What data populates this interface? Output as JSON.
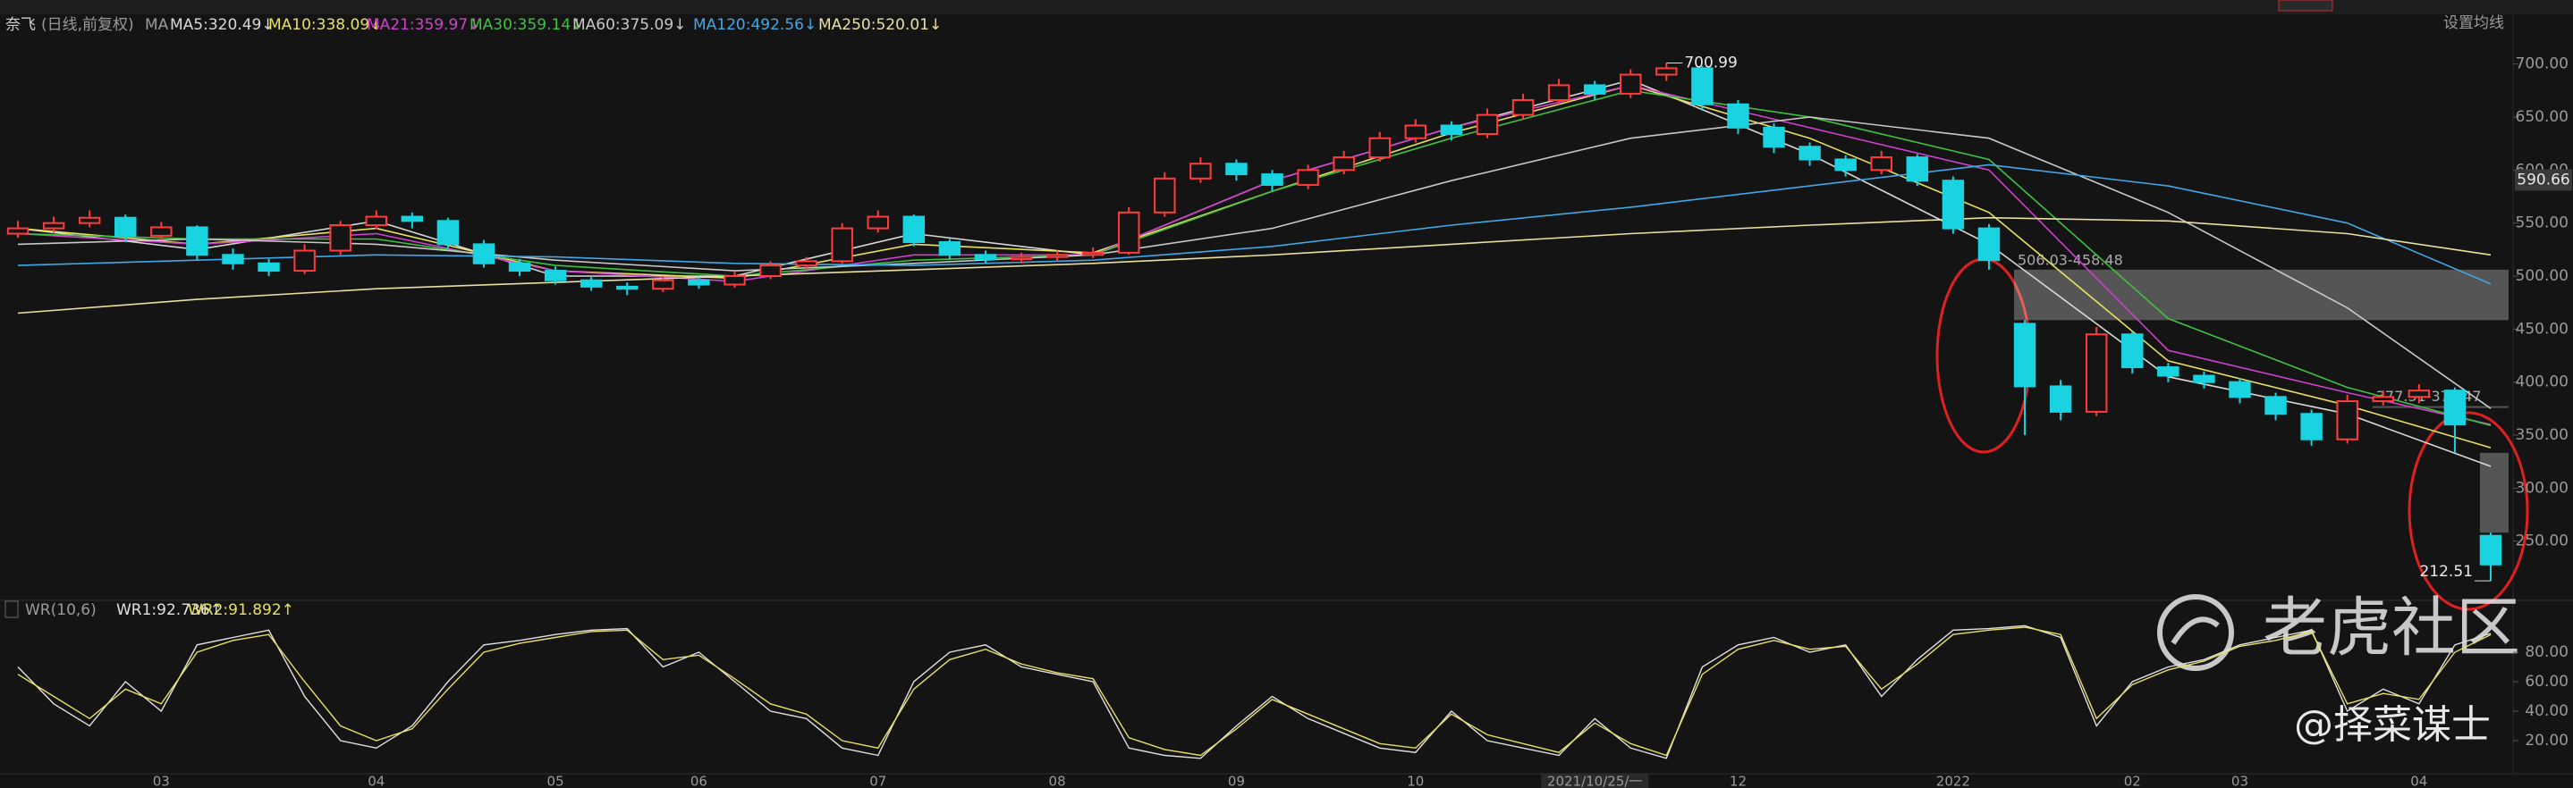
{
  "header": {
    "symbol": "奈飞",
    "period": "(日线,前复权)",
    "ma_label": "MA",
    "settings": "设置均线",
    "indicator": "WR(10,6)"
  },
  "watermark": {
    "brand": "老虎社区",
    "author": "@择菜谋士"
  },
  "chart_data": [
    {
      "type": "candlestick",
      "up_color": "#ff3b3b",
      "down_color": "#19d3e0",
      "categories": [
        null,
        null,
        null,
        null,
        "03",
        null,
        null,
        null,
        null,
        null,
        "04",
        null,
        null,
        null,
        null,
        "05",
        null,
        null,
        null,
        "06",
        null,
        null,
        null,
        null,
        "07",
        null,
        null,
        null,
        null,
        "08",
        null,
        null,
        null,
        null,
        "09",
        null,
        null,
        null,
        null,
        "10",
        null,
        null,
        null,
        null,
        "2021/10/25/一",
        null,
        null,
        null,
        "12",
        null,
        null,
        null,
        null,
        null,
        "2022",
        null,
        null,
        null,
        null,
        "02",
        null,
        null,
        "03",
        null,
        null,
        null,
        null,
        "04",
        null,
        null
      ],
      "candles": [
        [
          540,
          552,
          536,
          545
        ],
        [
          545,
          556,
          541,
          550
        ],
        [
          550,
          562,
          546,
          555
        ],
        [
          555,
          558,
          532,
          538
        ],
        [
          538,
          551,
          534,
          546
        ],
        [
          546,
          548,
          515,
          520
        ],
        [
          520,
          526,
          506,
          512
        ],
        [
          512,
          516,
          500,
          505
        ],
        [
          505,
          530,
          502,
          524
        ],
        [
          524,
          552,
          520,
          548
        ],
        [
          548,
          562,
          544,
          556
        ],
        [
          556,
          560,
          545,
          552
        ],
        [
          552,
          555,
          526,
          530
        ],
        [
          530,
          534,
          508,
          512
        ],
        [
          512,
          516,
          500,
          505
        ],
        [
          505,
          509,
          492,
          496
        ],
        [
          496,
          500,
          486,
          490
        ],
        [
          490,
          494,
          482,
          488
        ],
        [
          488,
          500,
          485,
          496
        ],
        [
          496,
          499,
          488,
          492
        ],
        [
          492,
          504,
          489,
          500
        ],
        [
          500,
          514,
          497,
          510
        ],
        [
          510,
          518,
          506,
          514
        ],
        [
          514,
          550,
          512,
          545
        ],
        [
          545,
          562,
          541,
          556
        ],
        [
          556,
          558,
          528,
          532
        ],
        [
          532,
          535,
          516,
          520
        ],
        [
          520,
          524,
          512,
          516
        ],
        [
          516,
          522,
          512,
          518
        ],
        [
          518,
          524,
          514,
          520
        ],
        [
          520,
          527,
          517,
          522
        ],
        [
          522,
          565,
          520,
          560
        ],
        [
          560,
          598,
          556,
          592
        ],
        [
          592,
          612,
          588,
          606
        ],
        [
          606,
          610,
          590,
          596
        ],
        [
          596,
          600,
          580,
          586
        ],
        [
          586,
          605,
          582,
          600
        ],
        [
          600,
          618,
          596,
          612
        ],
        [
          612,
          636,
          608,
          630
        ],
        [
          630,
          648,
          626,
          642
        ],
        [
          642,
          646,
          628,
          634
        ],
        [
          634,
          658,
          630,
          652
        ],
        [
          652,
          672,
          648,
          666
        ],
        [
          666,
          686,
          662,
          680
        ],
        [
          680,
          684,
          666,
          672
        ],
        [
          672,
          695,
          668,
          690
        ],
        [
          690,
          700.99,
          684,
          696
        ],
        [
          696,
          698,
          656,
          662
        ],
        [
          662,
          666,
          634,
          640
        ],
        [
          640,
          644,
          616,
          622
        ],
        [
          622,
          626,
          604,
          610
        ],
        [
          610,
          614,
          594,
          600
        ],
        [
          600,
          618,
          596,
          612
        ],
        [
          612,
          615,
          585,
          590
        ],
        [
          590,
          594,
          540,
          545
        ],
        [
          545,
          549,
          506.03,
          515
        ],
        [
          455,
          458.48,
          350,
          396
        ],
        [
          396,
          402,
          364,
          372
        ],
        [
          372,
          452,
          368,
          445
        ],
        [
          445,
          448,
          408,
          414
        ],
        [
          414,
          418,
          400,
          406
        ],
        [
          406,
          410,
          394,
          400
        ],
        [
          400,
          404,
          380,
          386
        ],
        [
          386,
          390,
          364,
          370
        ],
        [
          370,
          374,
          340,
          346
        ],
        [
          346,
          388,
          342,
          382
        ],
        [
          382,
          392,
          378,
          386
        ],
        [
          386,
          398,
          380,
          392
        ],
        [
          392,
          395,
          333.22,
          360
        ],
        [
          255,
          258,
          212.51,
          228
        ]
      ],
      "series": [
        {
          "name": "MA5:320.49↓",
          "color": "#d8d8d8",
          "x": [
            0,
            5,
            10,
            15,
            20,
            25,
            30,
            35,
            40,
            45,
            50,
            55,
            60,
            65,
            69
          ],
          "values": [
            545,
            525,
            552,
            500,
            500,
            540,
            520,
            590,
            640,
            685,
            615,
            530,
            405,
            370,
            320.49
          ]
        },
        {
          "name": "MA10:338.09↓",
          "color": "#e8e060",
          "x": [
            0,
            5,
            10,
            15,
            20,
            25,
            30,
            35,
            40,
            45,
            50,
            55,
            60,
            65,
            69
          ],
          "values": [
            545,
            530,
            545,
            505,
            498,
            530,
            522,
            580,
            635,
            680,
            630,
            560,
            420,
            378,
            338.09
          ]
        },
        {
          "name": "MA21:359.97↓",
          "color": "#d040d0",
          "x": [
            0,
            5,
            10,
            15,
            20,
            25,
            30,
            35,
            40,
            45,
            50,
            55,
            60,
            65,
            69
          ],
          "values": [
            540,
            530,
            540,
            505,
            495,
            520,
            520,
            590,
            640,
            680,
            640,
            600,
            430,
            390,
            359.97
          ]
        },
        {
          "name": "MA30:359.14↓",
          "color": "#40c040",
          "x": [
            0,
            5,
            10,
            15,
            20,
            25,
            30,
            35,
            40,
            45,
            50,
            55,
            60,
            65,
            69
          ],
          "values": [
            540,
            535,
            535,
            510,
            500,
            515,
            520,
            580,
            630,
            675,
            650,
            610,
            460,
            395,
            359.14
          ]
        },
        {
          "name": "MA60:375.09↓",
          "color": "#c8c8c8",
          "x": [
            0,
            5,
            10,
            15,
            20,
            25,
            30,
            35,
            40,
            45,
            50,
            55,
            60,
            65,
            69
          ],
          "values": [
            530,
            535,
            530,
            515,
            505,
            512,
            520,
            545,
            590,
            630,
            650,
            630,
            560,
            470,
            375.09
          ]
        },
        {
          "name": "MA120:492.56↓",
          "color": "#40a8e8",
          "x": [
            0,
            5,
            10,
            15,
            20,
            25,
            30,
            35,
            40,
            45,
            50,
            55,
            60,
            65,
            69
          ],
          "values": [
            510,
            515,
            520,
            518,
            512,
            510,
            515,
            528,
            548,
            565,
            585,
            605,
            585,
            550,
            492.56
          ]
        },
        {
          "name": "MA250:520.01↓",
          "color": "#e8e0a0",
          "x": [
            0,
            5,
            10,
            15,
            20,
            25,
            30,
            35,
            40,
            45,
            50,
            55,
            60,
            65,
            69
          ],
          "values": [
            465,
            478,
            488,
            494,
            500,
            506,
            512,
            520,
            530,
            540,
            548,
            555,
            552,
            540,
            520.01
          ]
        }
      ],
      "annotations": [
        {
          "index": 46,
          "value": 700.99,
          "label": "700.99"
        },
        {
          "index": 69,
          "value": 212.51,
          "label": "212.51"
        }
      ],
      "gaps": [
        {
          "from": 56,
          "low": 458.48,
          "high": 506.03,
          "label": "506.03-458.48"
        },
        {
          "from": 66,
          "low": 376.47,
          "high": 377.31,
          "label": "377.31-376.47"
        },
        {
          "from": 69,
          "low": 258,
          "high": 333.22
        }
      ],
      "price_marker": 590.66,
      "ylim": [
        200,
        725
      ],
      "yticks": [
        {
          "value": 250,
          "label": "250.00"
        },
        {
          "value": 300,
          "label": "300.00"
        },
        {
          "value": 350,
          "label": "350.00"
        },
        {
          "value": 400,
          "label": "400.00"
        },
        {
          "value": 450,
          "label": "450.00"
        },
        {
          "value": 500,
          "label": "500.00"
        },
        {
          "value": 550,
          "label": "550.00"
        },
        {
          "value": 600,
          "label": "600.00"
        },
        {
          "value": 650,
          "label": "650.00"
        },
        {
          "value": 700,
          "label": "700.00"
        }
      ]
    },
    {
      "type": "line",
      "series": [
        {
          "name": "WR1:92.736↑",
          "color": "#e0e0e0",
          "values": [
            70,
            45,
            30,
            60,
            40,
            85,
            90,
            95,
            50,
            20,
            15,
            30,
            60,
            85,
            88,
            92,
            95,
            96,
            70,
            80,
            60,
            40,
            35,
            15,
            10,
            60,
            80,
            85,
            70,
            65,
            60,
            15,
            10,
            8,
            30,
            50,
            35,
            25,
            15,
            12,
            40,
            20,
            15,
            10,
            35,
            15,
            8,
            70,
            85,
            90,
            80,
            85,
            50,
            75,
            95,
            96,
            98,
            90,
            30,
            60,
            70,
            75,
            85,
            90,
            95,
            40,
            55,
            45,
            85,
            92.736
          ]
        },
        {
          "name": "WR2:91.892↑",
          "color": "#e8e060",
          "values": [
            65,
            50,
            35,
            55,
            45,
            80,
            88,
            92,
            60,
            30,
            20,
            28,
            55,
            80,
            86,
            90,
            94,
            95,
            75,
            78,
            62,
            45,
            38,
            20,
            15,
            55,
            75,
            82,
            72,
            66,
            62,
            22,
            14,
            10,
            28,
            48,
            38,
            28,
            18,
            15,
            38,
            24,
            18,
            12,
            32,
            18,
            10,
            65,
            82,
            88,
            82,
            84,
            55,
            72,
            92,
            95,
            97,
            92,
            35,
            58,
            68,
            74,
            84,
            88,
            94,
            45,
            52,
            48,
            80,
            91.892
          ]
        }
      ],
      "ylim": [
        0,
        100
      ],
      "yticks": [
        {
          "value": 20,
          "label": "20.00"
        },
        {
          "value": 40,
          "label": "40.00"
        },
        {
          "value": 60,
          "label": "60.00"
        },
        {
          "value": 80,
          "label": "80.00"
        }
      ]
    }
  ]
}
